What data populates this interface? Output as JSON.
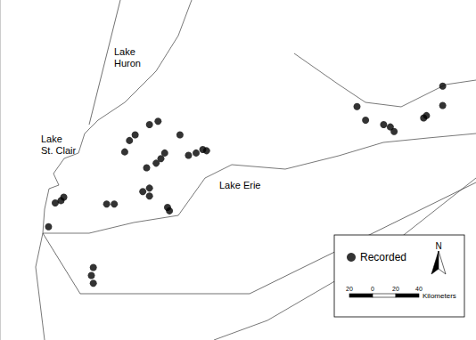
{
  "chart_data": {
    "type": "scatter",
    "x": [
      -83.09,
      -83.02,
      -82.96,
      -82.93,
      -82.48,
      -82.4,
      -82.29,
      -82.24,
      -82.18,
      -82.03,
      -81.94,
      -81.71,
      -82.06,
      -81.96,
      -81.91,
      -81.87,
      -82.1,
      -82.03,
      -82.03,
      -81.84,
      -81.82,
      -81.62,
      -81.54,
      -81.47,
      -81.43,
      -82.62,
      -82.64,
      -82.62,
      -79.85,
      -79.76,
      -79.57,
      -79.5,
      -79.46,
      -79.15,
      -79.12,
      -78.95,
      -78.95
    ],
    "series": [
      {
        "name": "Recorded",
        "color": "#000000",
        "marker": "circle",
        "values": [
          42.6,
          42.81,
          42.83,
          42.86,
          42.8,
          42.8,
          43.26,
          43.36,
          43.41,
          43.5,
          43.53,
          43.41,
          43.12,
          43.16,
          43.2,
          43.25,
          42.91,
          42.94,
          42.87,
          42.77,
          42.74,
          43.23,
          43.25,
          43.28,
          43.27,
          42.24,
          42.17,
          42.1,
          43.66,
          43.54,
          43.5,
          43.48,
          43.44,
          43.56,
          43.58,
          43.84,
          43.67
        ]
      }
    ],
    "xlim": [
      -83.6,
      -78.6
    ],
    "ylim": [
      41.6,
      44.6
    ],
    "tick_labels": false,
    "grid": false,
    "legend": "bottom-right",
    "annotations": [
      "Lake Huron",
      "Lake St. Clair",
      "Lake Erie"
    ],
    "north_arrow": "N",
    "scale_bar": {
      "ticks": [
        {
          "value": -20,
          "label": "20"
        },
        0,
        20,
        40
      ],
      "unit": "Kilometers"
    }
  }
}
